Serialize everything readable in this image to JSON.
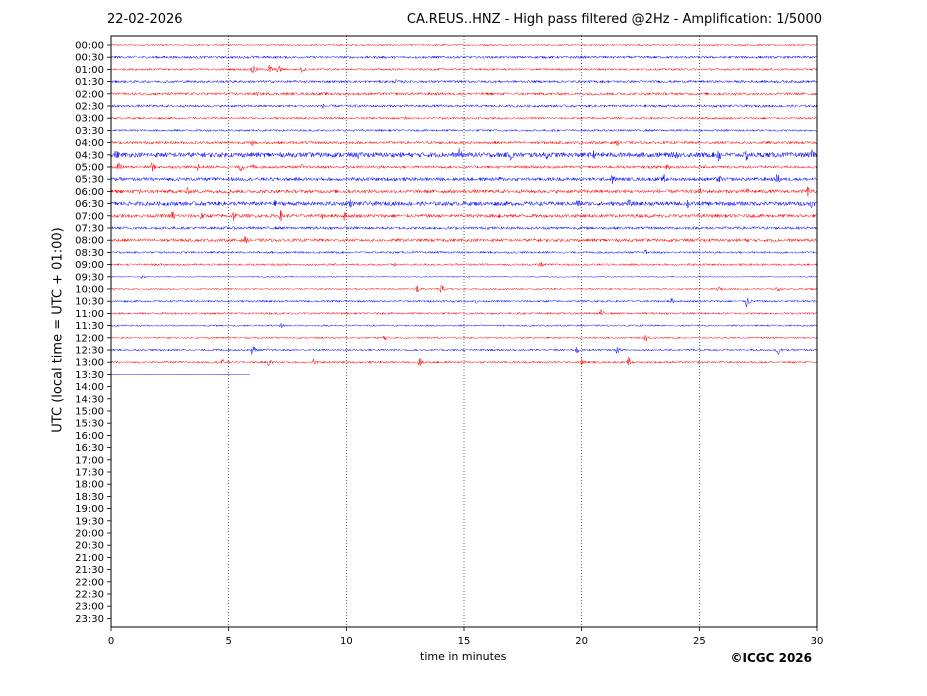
{
  "header": {
    "date": "22-02-2026",
    "title": "CA.REUS..HNZ - High pass filtered @2Hz - Amplification: 1/5000"
  },
  "footer": {
    "copyright": "©ICGC 2026"
  },
  "colors": {
    "trace_a": "#ff0000",
    "trace_b": "#0000ff",
    "grid": "#000000"
  },
  "chart_data": {
    "type": "line",
    "title": "CA.REUS..HNZ - High pass filtered @2Hz - Amplification: 1/5000",
    "xlabel": "time in minutes",
    "ylabel": "UTC (local time = UTC + 01:00)",
    "xlim": [
      0,
      30
    ],
    "xticks": [
      0,
      5,
      10,
      15,
      20,
      25,
      30
    ],
    "grid": "vertical dotted lines at every 5 minutes",
    "row_labels": [
      "00:00",
      "00:30",
      "01:00",
      "01:30",
      "02:00",
      "02:30",
      "03:00",
      "03:30",
      "04:00",
      "04:30",
      "05:00",
      "05:30",
      "06:00",
      "06:30",
      "07:00",
      "07:30",
      "08:00",
      "08:30",
      "09:00",
      "09:30",
      "10:00",
      "10:30",
      "11:00",
      "11:30",
      "12:00",
      "12:30",
      "13:00",
      "13:30",
      "14:00",
      "14:30",
      "15:00",
      "15:30",
      "16:00",
      "16:30",
      "17:00",
      "17:30",
      "18:00",
      "18:30",
      "19:00",
      "19:30",
      "20:00",
      "20:30",
      "21:00",
      "21:30",
      "22:00",
      "22:30",
      "23:00",
      "23:30"
    ],
    "trace_colors_cycle": [
      "red",
      "blue"
    ],
    "traces": [
      {
        "row": "00:00",
        "color": "red",
        "end_min": 30,
        "amp": 0.12,
        "events": []
      },
      {
        "row": "00:30",
        "color": "blue",
        "end_min": 30,
        "amp": 0.18,
        "events": [
          {
            "t": 6.0,
            "a": 0.3
          }
        ]
      },
      {
        "row": "01:00",
        "color": "red",
        "end_min": 30,
        "amp": 0.15,
        "events": [
          {
            "t": 6.0,
            "a": 1.1
          },
          {
            "t": 6.7,
            "a": 0.9
          },
          {
            "t": 7.1,
            "a": 0.8
          },
          {
            "t": 8.1,
            "a": 0.6
          }
        ]
      },
      {
        "row": "01:30",
        "color": "blue",
        "end_min": 30,
        "amp": 0.18,
        "events": [
          {
            "t": 2.8,
            "a": 0.3
          },
          {
            "t": 12.1,
            "a": 0.4
          }
        ]
      },
      {
        "row": "02:00",
        "color": "red",
        "end_min": 30,
        "amp": 0.2,
        "events": [
          {
            "t": 6.2,
            "a": 0.4
          }
        ]
      },
      {
        "row": "02:30",
        "color": "blue",
        "end_min": 30,
        "amp": 0.18,
        "events": [
          {
            "t": 9.0,
            "a": 0.4
          }
        ]
      },
      {
        "row": "03:00",
        "color": "red",
        "end_min": 30,
        "amp": 0.15,
        "events": [
          {
            "t": 12.5,
            "a": 0.3
          }
        ]
      },
      {
        "row": "03:30",
        "color": "blue",
        "end_min": 30,
        "amp": 0.15,
        "events": []
      },
      {
        "row": "04:00",
        "color": "red",
        "end_min": 30,
        "amp": 0.2,
        "events": [
          {
            "t": 6.0,
            "a": 0.5
          },
          {
            "t": 21.5,
            "a": 0.5
          }
        ]
      },
      {
        "row": "04:30",
        "color": "blue",
        "end_min": 30,
        "amp": 0.35,
        "events": [
          {
            "t": 0.2,
            "a": 0.9
          },
          {
            "t": 10.5,
            "a": 0.8
          },
          {
            "t": 14.8,
            "a": 1.0
          },
          {
            "t": 17.0,
            "a": 1.1
          },
          {
            "t": 18.5,
            "a": 0.9
          },
          {
            "t": 20.5,
            "a": 0.7
          },
          {
            "t": 24.0,
            "a": 0.8
          },
          {
            "t": 25.8,
            "a": 1.3
          },
          {
            "t": 27.0,
            "a": 1.0
          },
          {
            "t": 29.8,
            "a": 0.9
          }
        ]
      },
      {
        "row": "05:00",
        "color": "red",
        "end_min": 30,
        "amp": 0.2,
        "events": [
          {
            "t": 0.3,
            "a": 1.0
          },
          {
            "t": 1.7,
            "a": 1.0
          },
          {
            "t": 3.7,
            "a": 0.7
          },
          {
            "t": 5.5,
            "a": 0.9
          },
          {
            "t": 6.0,
            "a": 0.7
          },
          {
            "t": 8.1,
            "a": 0.5
          },
          {
            "t": 23.6,
            "a": 0.9
          }
        ]
      },
      {
        "row": "05:30",
        "color": "blue",
        "end_min": 30,
        "amp": 0.25,
        "events": [
          {
            "t": 16.5,
            "a": 0.5
          },
          {
            "t": 21.3,
            "a": 0.9
          },
          {
            "t": 23.5,
            "a": 0.8
          },
          {
            "t": 25.8,
            "a": 0.9
          },
          {
            "t": 28.3,
            "a": 1.0
          }
        ]
      },
      {
        "row": "06:00",
        "color": "red",
        "end_min": 30,
        "amp": 0.25,
        "events": [
          {
            "t": 1.2,
            "a": 1.0
          },
          {
            "t": 3.2,
            "a": 0.8
          },
          {
            "t": 5.0,
            "a": 0.6
          },
          {
            "t": 25.0,
            "a": 0.6
          },
          {
            "t": 27.0,
            "a": 0.6
          },
          {
            "t": 29.6,
            "a": 0.9
          }
        ]
      },
      {
        "row": "06:30",
        "color": "blue",
        "end_min": 30,
        "amp": 0.3,
        "events": [
          {
            "t": 7.0,
            "a": 0.8
          },
          {
            "t": 10.1,
            "a": 1.0
          },
          {
            "t": 19.8,
            "a": 0.9
          },
          {
            "t": 22.0,
            "a": 0.8
          },
          {
            "t": 24.5,
            "a": 0.9
          },
          {
            "t": 29.7,
            "a": 0.9
          }
        ]
      },
      {
        "row": "07:00",
        "color": "red",
        "end_min": 30,
        "amp": 0.25,
        "events": [
          {
            "t": 2.6,
            "a": 1.0
          },
          {
            "t": 3.8,
            "a": 0.8
          },
          {
            "t": 5.2,
            "a": 0.9
          },
          {
            "t": 7.2,
            "a": 0.9
          },
          {
            "t": 9.0,
            "a": 0.6
          },
          {
            "t": 9.9,
            "a": 0.8
          },
          {
            "t": 16.5,
            "a": 0.6
          },
          {
            "t": 25.0,
            "a": 0.5
          }
        ]
      },
      {
        "row": "07:30",
        "color": "blue",
        "end_min": 30,
        "amp": 0.2,
        "events": [
          {
            "t": 8.6,
            "a": 0.4
          },
          {
            "t": 24.0,
            "a": 0.3
          }
        ]
      },
      {
        "row": "08:00",
        "color": "red",
        "end_min": 30,
        "amp": 0.22,
        "events": [
          {
            "t": 5.7,
            "a": 0.7
          },
          {
            "t": 18.0,
            "a": 0.4
          },
          {
            "t": 27.0,
            "a": 0.4
          }
        ]
      },
      {
        "row": "08:30",
        "color": "blue",
        "end_min": 30,
        "amp": 0.15,
        "events": [
          {
            "t": 22.7,
            "a": 0.5
          }
        ]
      },
      {
        "row": "09:00",
        "color": "red",
        "end_min": 30,
        "amp": 0.15,
        "events": [
          {
            "t": 12.0,
            "a": 0.4
          },
          {
            "t": 18.2,
            "a": 0.6
          },
          {
            "t": 22.0,
            "a": 0.3
          }
        ]
      },
      {
        "row": "09:30",
        "color": "blue",
        "end_min": 30,
        "amp": 0.08,
        "events": [
          {
            "t": 1.3,
            "a": 0.4
          }
        ]
      },
      {
        "row": "10:00",
        "color": "red",
        "end_min": 30,
        "amp": 0.12,
        "events": [
          {
            "t": 13.0,
            "a": 0.8
          },
          {
            "t": 14.0,
            "a": 0.8
          },
          {
            "t": 25.8,
            "a": 0.5
          },
          {
            "t": 28.3,
            "a": 0.5
          }
        ]
      },
      {
        "row": "10:30",
        "color": "blue",
        "end_min": 30,
        "amp": 0.15,
        "events": [
          {
            "t": 15.5,
            "a": 0.4
          },
          {
            "t": 23.8,
            "a": 0.5
          },
          {
            "t": 27.0,
            "a": 1.0
          }
        ]
      },
      {
        "row": "11:00",
        "color": "red",
        "end_min": 30,
        "amp": 0.15,
        "events": [
          {
            "t": 0.8,
            "a": 0.3
          },
          {
            "t": 20.8,
            "a": 0.7
          }
        ]
      },
      {
        "row": "11:30",
        "color": "blue",
        "end_min": 30,
        "amp": 0.12,
        "events": [
          {
            "t": 7.2,
            "a": 0.5
          }
        ]
      },
      {
        "row": "12:00",
        "color": "red",
        "end_min": 30,
        "amp": 0.12,
        "events": [
          {
            "t": 11.6,
            "a": 0.5
          },
          {
            "t": 22.7,
            "a": 0.7
          }
        ]
      },
      {
        "row": "12:30",
        "color": "blue",
        "end_min": 30,
        "amp": 0.15,
        "events": [
          {
            "t": 6.0,
            "a": 0.9
          },
          {
            "t": 19.8,
            "a": 0.8
          },
          {
            "t": 21.5,
            "a": 0.6
          },
          {
            "t": 28.3,
            "a": 1.0
          }
        ]
      },
      {
        "row": "13:00",
        "color": "red",
        "end_min": 30,
        "amp": 0.15,
        "events": [
          {
            "t": 4.7,
            "a": 0.6
          },
          {
            "t": 6.7,
            "a": 0.6
          },
          {
            "t": 8.6,
            "a": 0.6
          },
          {
            "t": 13.1,
            "a": 0.8
          },
          {
            "t": 20.0,
            "a": 0.6
          },
          {
            "t": 22.0,
            "a": 0.8
          }
        ]
      },
      {
        "row": "13:30",
        "color": "blue",
        "end_min": 5.9,
        "amp": 0.02,
        "events": []
      }
    ]
  }
}
